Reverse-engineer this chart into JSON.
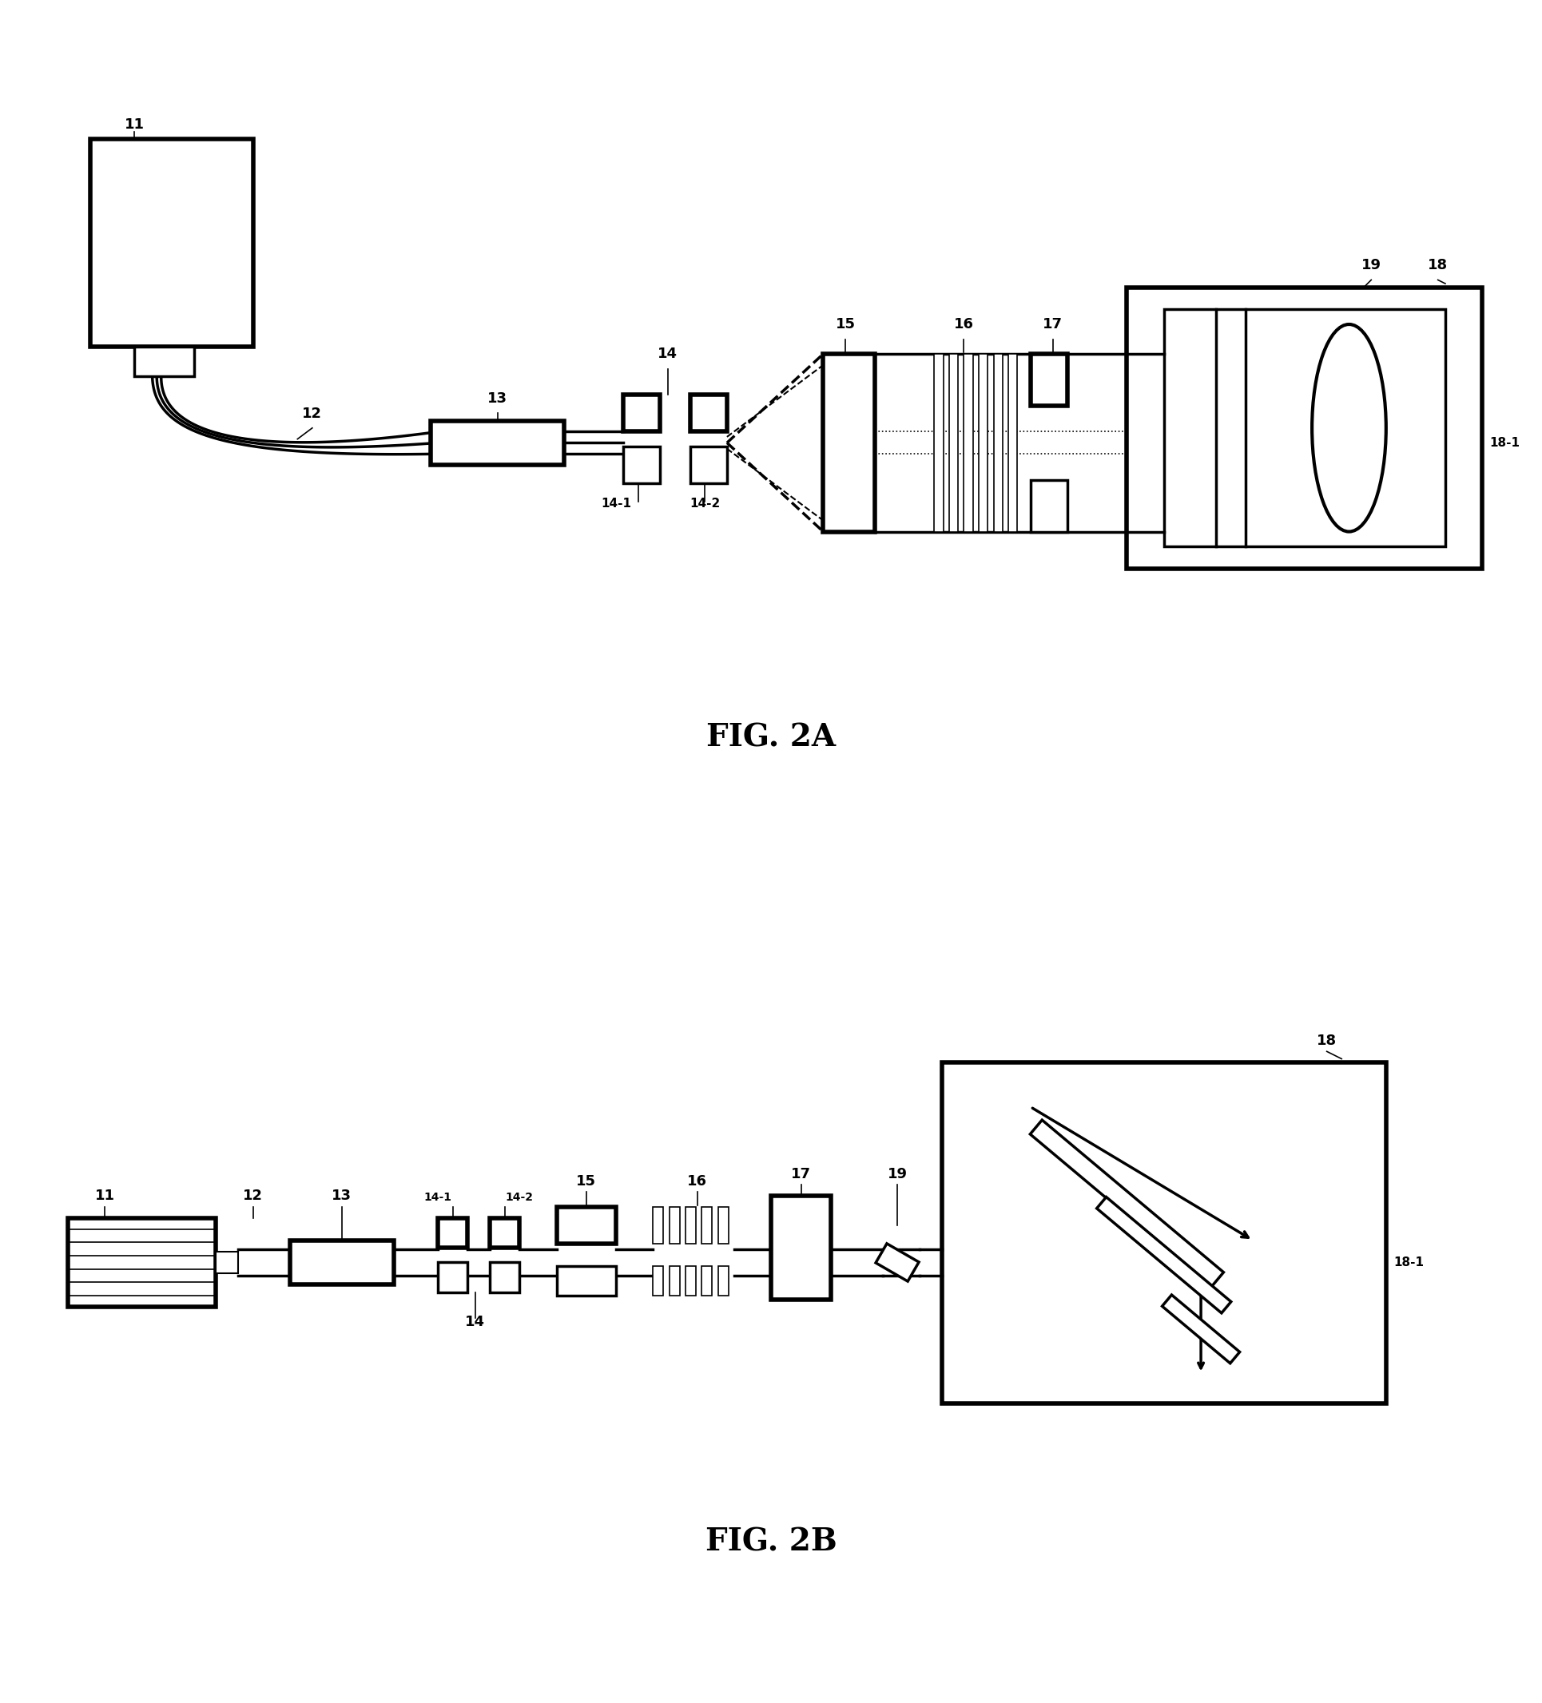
{
  "fig_title_a": "FIG. 2A",
  "fig_title_b": "FIG. 2B",
  "background_color": "#ffffff",
  "line_color": "#000000"
}
